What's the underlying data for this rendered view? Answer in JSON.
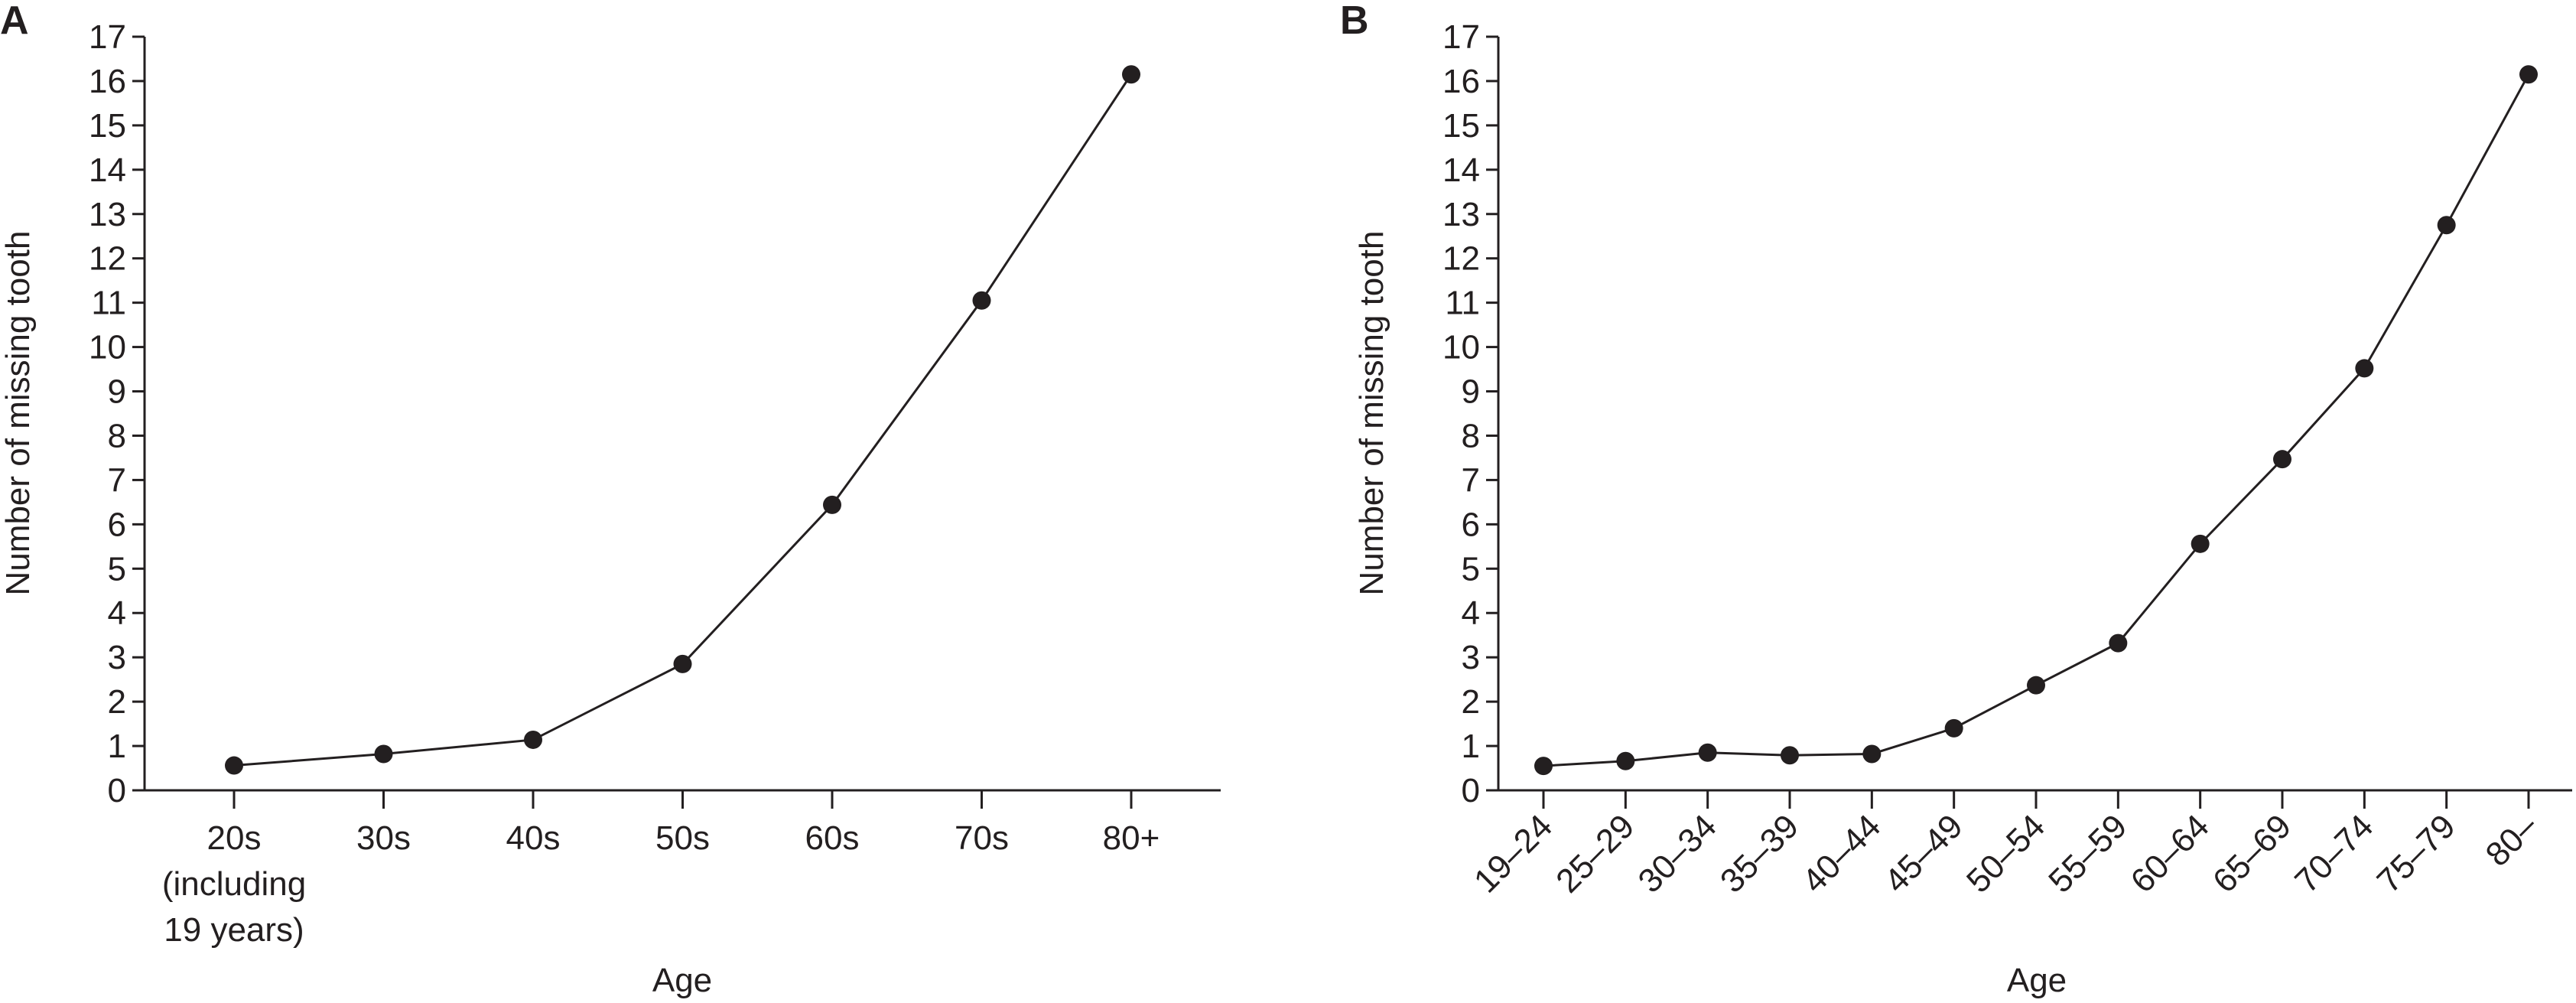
{
  "chart_data": [
    {
      "panel": "A",
      "type": "line",
      "xlabel": "Age",
      "ylabel": "Number of missing tooth",
      "ylim": [
        0,
        17
      ],
      "yticks": [
        "0",
        "1",
        "2",
        "3",
        "4",
        "5",
        "6",
        "7",
        "8",
        "9",
        "10",
        "11",
        "12",
        "13",
        "14",
        "15",
        "16",
        "17"
      ],
      "categories": [
        "20s (including 19 years)",
        "30s",
        "40s",
        "50s",
        "60s",
        "70s",
        "80+"
      ],
      "category_lines": [
        [
          "20s",
          "(including",
          "19 years)"
        ],
        [
          "30s"
        ],
        [
          "40s"
        ],
        [
          "50s"
        ],
        [
          "60s"
        ],
        [
          "70s"
        ],
        [
          "80+"
        ]
      ],
      "values": [
        0.56,
        0.82,
        1.14,
        2.85,
        6.44,
        11.05,
        16.15
      ],
      "grid": false,
      "color": "#231f20"
    },
    {
      "panel": "B",
      "type": "line",
      "xlabel": "Age",
      "ylabel": "Number of missing tooth",
      "ylim": [
        0,
        17
      ],
      "yticks": [
        "0",
        "1",
        "2",
        "3",
        "4",
        "5",
        "6",
        "7",
        "8",
        "9",
        "10",
        "11",
        "12",
        "13",
        "14",
        "15",
        "16",
        "17"
      ],
      "categories": [
        "19–24",
        "25–29",
        "30–34",
        "35–39",
        "40–44",
        "45–49",
        "50–54",
        "55–59",
        "60–64",
        "65–69",
        "70–74",
        "75–79",
        "80–"
      ],
      "values": [
        0.55,
        0.66,
        0.85,
        0.79,
        0.82,
        1.4,
        2.37,
        3.32,
        5.56,
        7.47,
        9.52,
        12.75,
        16.15
      ],
      "grid": false,
      "color": "#231f20"
    }
  ]
}
